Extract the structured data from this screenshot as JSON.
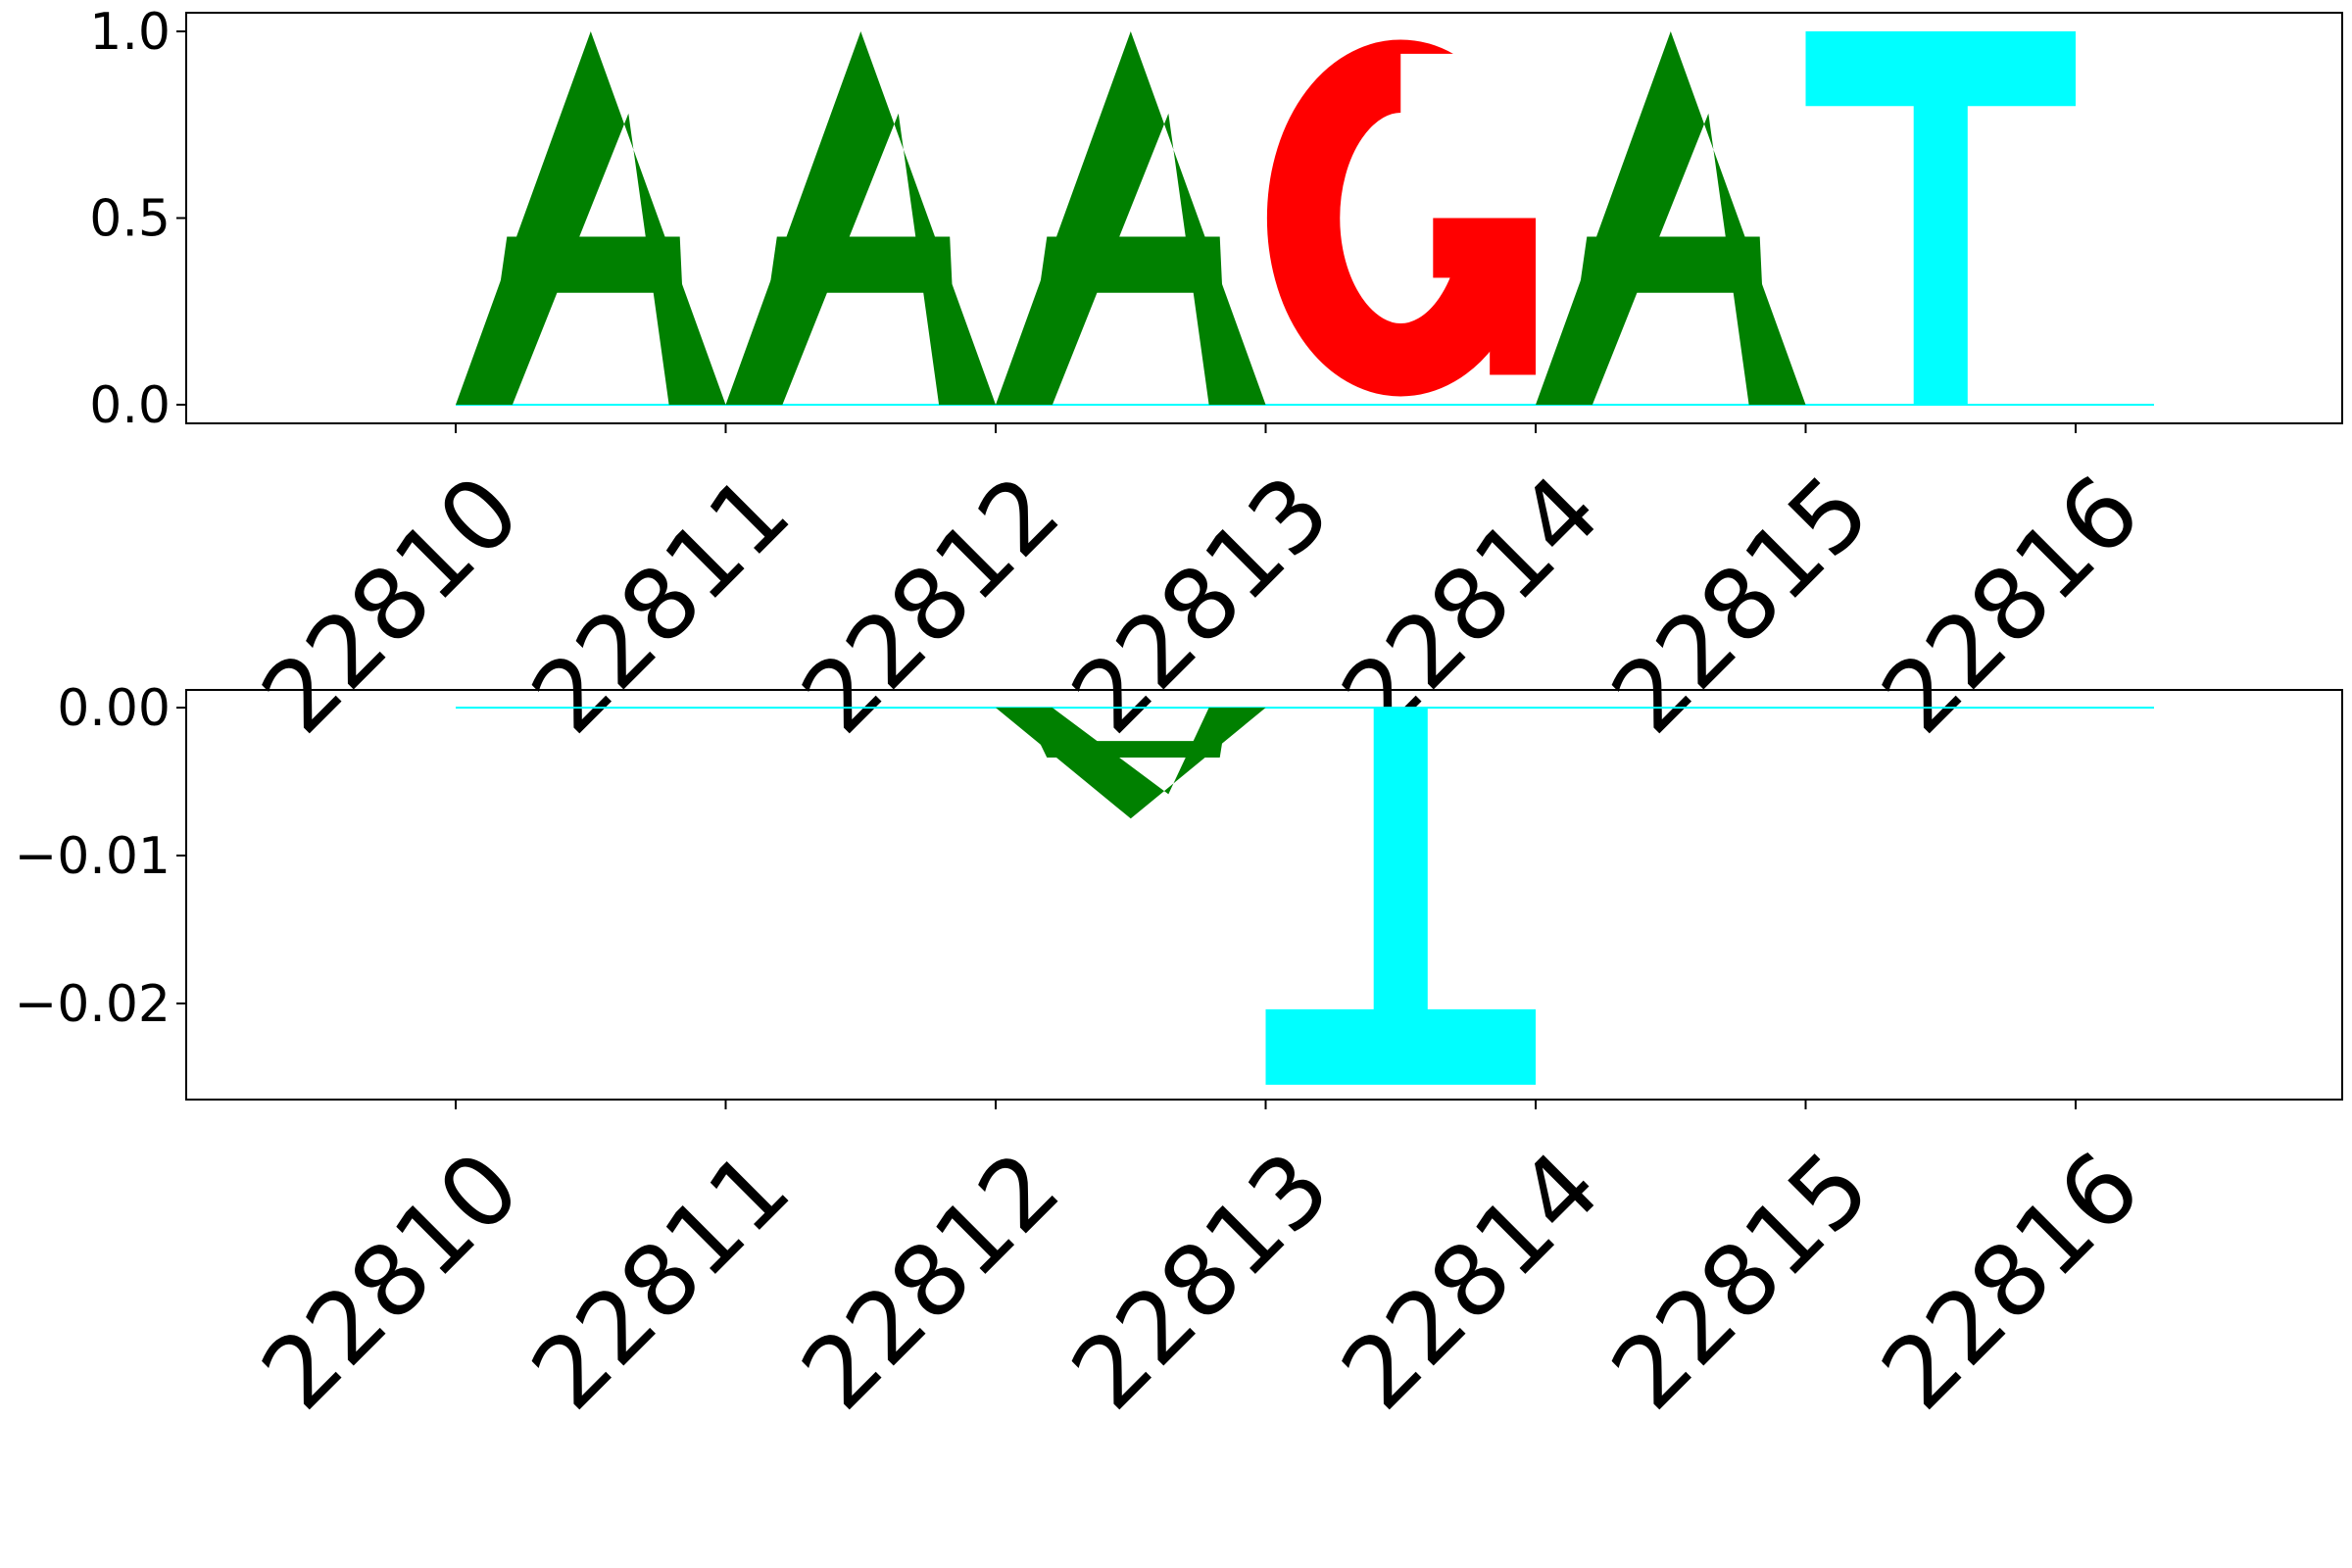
{
  "chart_data": [
    {
      "type": "sequence-logo",
      "title": "",
      "xlabel": "",
      "ylabel": "",
      "positions": [
        22810,
        22811,
        22812,
        22813,
        22814,
        22815,
        22816
      ],
      "x_tick_labels": [
        "22810",
        "22811",
        "22812",
        "22813",
        "22814",
        "22815",
        "22816"
      ],
      "y_ticks": [
        0.0,
        0.5,
        1.0
      ],
      "y_tick_labels": [
        "0.0",
        "0.5",
        "1.0"
      ],
      "ylim": [
        -0.05,
        1.05
      ],
      "colors": {
        "A": "#008000",
        "C": "#0000ff",
        "G": "#ff0000",
        "T": "#00ffff"
      },
      "letters": [
        {
          "position": 22810,
          "base": "A",
          "value": 1.0
        },
        {
          "position": 22811,
          "base": "A",
          "value": 1.0
        },
        {
          "position": 22812,
          "base": "A",
          "value": 1.0
        },
        {
          "position": 22813,
          "base": "G",
          "value": 1.0
        },
        {
          "position": 22814,
          "base": "A",
          "value": 1.0
        },
        {
          "position": 22815,
          "base": "T",
          "value": 1.0
        }
      ]
    },
    {
      "type": "sequence-logo",
      "title": "",
      "xlabel": "",
      "ylabel": "",
      "positions": [
        22810,
        22811,
        22812,
        22813,
        22814,
        22815,
        22816
      ],
      "x_tick_labels": [
        "22810",
        "22811",
        "22812",
        "22813",
        "22814",
        "22815",
        "22816"
      ],
      "y_ticks": [
        0.0,
        -0.01,
        -0.02
      ],
      "y_tick_labels": [
        "0.00",
        "−0.01",
        "−0.02"
      ],
      "ylim": [
        -0.0265,
        0.0012
      ],
      "colors": {
        "A": "#008000",
        "C": "#0000ff",
        "G": "#ff0000",
        "T": "#00ffff"
      },
      "letters": [
        {
          "position": 22812,
          "base": "A",
          "value": -0.0075
        },
        {
          "position": 22813,
          "base": "T",
          "value": -0.0255
        }
      ]
    }
  ]
}
